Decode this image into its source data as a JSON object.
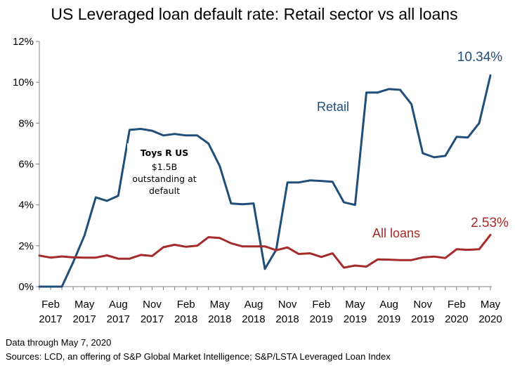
{
  "chart_data": {
    "type": "line",
    "title": "US Leveraged loan default rate: Retail sector vs all loans",
    "ylim": [
      0,
      12
    ],
    "y_ticks": [
      "0%",
      "2%",
      "4%",
      "6%",
      "8%",
      "10%",
      "12%"
    ],
    "x_ticks": [
      {
        "month": "Feb",
        "year": "2017"
      },
      {
        "month": "May",
        "year": "2017"
      },
      {
        "month": "Aug",
        "year": "2017"
      },
      {
        "month": "Nov",
        "year": "2017"
      },
      {
        "month": "Feb",
        "year": "2018"
      },
      {
        "month": "May",
        "year": "2018"
      },
      {
        "month": "Aug",
        "year": "2018"
      },
      {
        "month": "Nov",
        "year": "2018"
      },
      {
        "month": "Feb",
        "year": "2019"
      },
      {
        "month": "May",
        "year": "2019"
      },
      {
        "month": "Aug",
        "year": "2019"
      },
      {
        "month": "Nov",
        "year": "2019"
      },
      {
        "month": "Feb",
        "year": "2020"
      },
      {
        "month": "May",
        "year": "2020"
      }
    ],
    "x": [
      "2017-01",
      "2017-02",
      "2017-03",
      "2017-04",
      "2017-05",
      "2017-06",
      "2017-07",
      "2017-08",
      "2017-09",
      "2017-10",
      "2017-11",
      "2017-12",
      "2018-01",
      "2018-02",
      "2018-03",
      "2018-04",
      "2018-05",
      "2018-06",
      "2018-07",
      "2018-08",
      "2018-09",
      "2018-10",
      "2018-11",
      "2018-12",
      "2019-01",
      "2019-02",
      "2019-03",
      "2019-04",
      "2019-05",
      "2019-06",
      "2019-07",
      "2019-08",
      "2019-09",
      "2019-10",
      "2019-11",
      "2019-12",
      "2020-01",
      "2020-02",
      "2020-03",
      "2020-04",
      "2020-05"
    ],
    "series": [
      {
        "name": "Retail",
        "color": "#1F4E79",
        "values": [
          0,
          0,
          0,
          1.2,
          2.5,
          4.37,
          4.2,
          4.45,
          7.67,
          7.72,
          7.63,
          7.4,
          7.47,
          7.4,
          7.4,
          7.0,
          5.9,
          4.07,
          4.03,
          4.07,
          0.87,
          1.8,
          5.1,
          5.1,
          5.2,
          5.17,
          5.13,
          4.13,
          4.0,
          9.5,
          9.5,
          9.67,
          9.63,
          8.93,
          6.53,
          6.33,
          6.4,
          7.33,
          7.3,
          8.0,
          10.34
        ]
      },
      {
        "name": "All loans",
        "color": "#A52A2A",
        "values": [
          1.52,
          1.42,
          1.48,
          1.43,
          1.42,
          1.42,
          1.53,
          1.37,
          1.37,
          1.55,
          1.5,
          1.93,
          2.05,
          1.95,
          2.0,
          2.42,
          2.38,
          2.12,
          1.97,
          1.97,
          1.97,
          1.78,
          1.92,
          1.6,
          1.63,
          1.45,
          1.63,
          0.93,
          1.03,
          0.98,
          1.33,
          1.32,
          1.3,
          1.3,
          1.43,
          1.47,
          1.4,
          1.83,
          1.8,
          1.83,
          2.53
        ]
      }
    ],
    "end_labels": {
      "Retail": "10.34%",
      "All loans": "2.53%"
    },
    "annotation": {
      "title": "Toys R US",
      "lines": [
        "$1.5B",
        "outstanding at",
        "default"
      ]
    },
    "grid": false
  },
  "footer": {
    "line1": "Data through May 7, 2020",
    "line2": "Sources: LCD, an offering of S&P Global Market Intelligence; S&P/LSTA Leveraged Loan Index"
  }
}
